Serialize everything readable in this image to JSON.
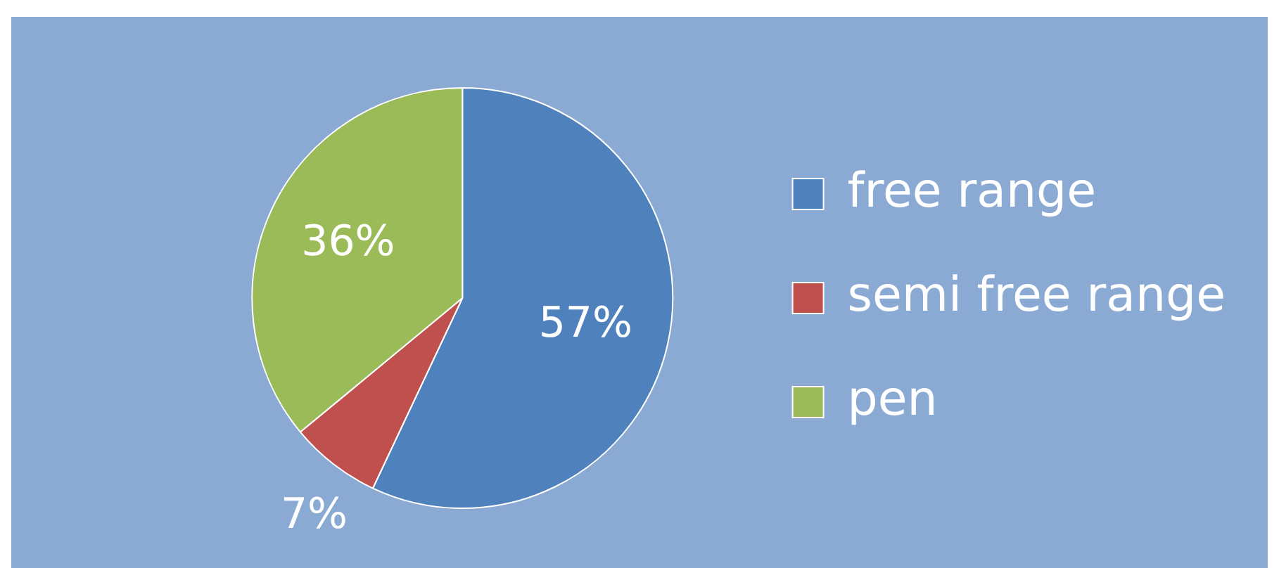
{
  "chart_data": {
    "type": "pie",
    "categories": [
      "free range",
      "semi free range",
      "pen"
    ],
    "values": [
      57,
      7,
      36
    ],
    "colors": [
      "#4f81bd",
      "#c0504d",
      "#9bbb59"
    ],
    "value_labels": [
      "57%",
      "7%",
      "36%"
    ],
    "legend": "right"
  }
}
